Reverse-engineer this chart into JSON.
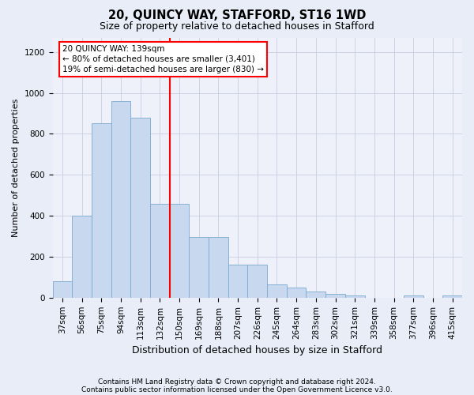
{
  "title1": "20, QUINCY WAY, STAFFORD, ST16 1WD",
  "title2": "Size of property relative to detached houses in Stafford",
  "xlabel": "Distribution of detached houses by size in Stafford",
  "ylabel": "Number of detached properties",
  "categories": [
    "37sqm",
    "56sqm",
    "75sqm",
    "94sqm",
    "113sqm",
    "132sqm",
    "150sqm",
    "169sqm",
    "188sqm",
    "207sqm",
    "226sqm",
    "245sqm",
    "264sqm",
    "283sqm",
    "302sqm",
    "321sqm",
    "339sqm",
    "358sqm",
    "377sqm",
    "396sqm",
    "415sqm"
  ],
  "values": [
    80,
    400,
    850,
    960,
    880,
    460,
    460,
    295,
    295,
    160,
    160,
    65,
    50,
    30,
    20,
    10,
    0,
    0,
    10,
    0,
    10
  ],
  "bar_color": "#c8d8ee",
  "bar_edge_color": "#7aaad0",
  "vline_x": 5.5,
  "vline_color": "red",
  "annotation_line1": "20 QUINCY WAY: 139sqm",
  "annotation_line2": "← 80% of detached houses are smaller (3,401)",
  "annotation_line3": "19% of semi-detached houses are larger (830) →",
  "annotation_box_color": "white",
  "annotation_box_edge": "red",
  "ylim": [
    0,
    1270
  ],
  "yticks": [
    0,
    200,
    400,
    600,
    800,
    1000,
    1200
  ],
  "footer1": "Contains HM Land Registry data © Crown copyright and database right 2024.",
  "footer2": "Contains public sector information licensed under the Open Government Licence v3.0.",
  "bg_color": "#e8edf8",
  "plot_bg_color": "#eef1fa",
  "grid_color": "#c8cce0",
  "title1_fontsize": 10.5,
  "title2_fontsize": 9,
  "ylabel_fontsize": 8,
  "xlabel_fontsize": 9,
  "tick_fontsize": 7.5,
  "annotation_fontsize": 7.5,
  "footer_fontsize": 6.5
}
